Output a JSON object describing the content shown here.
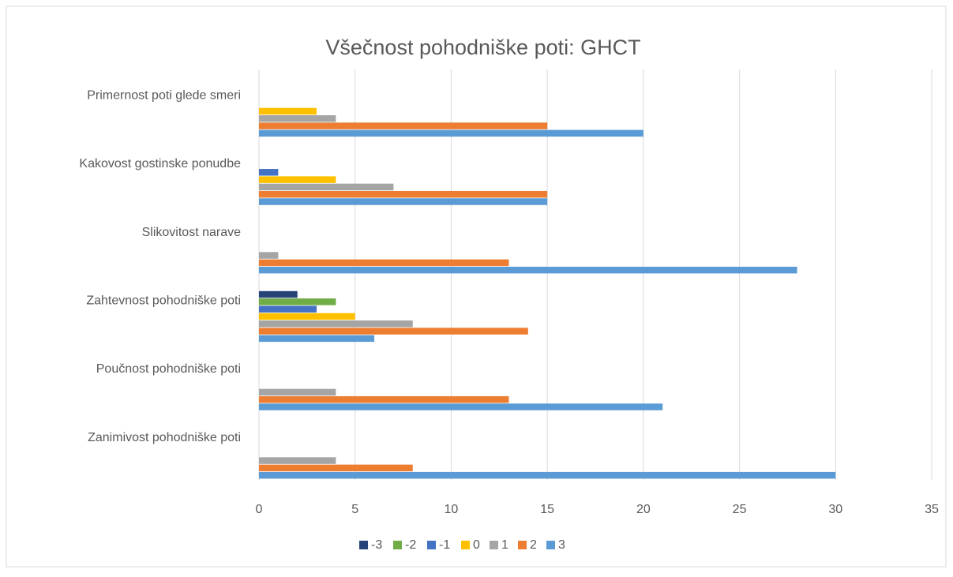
{
  "chart_data": {
    "type": "barh",
    "title": "Všečnost pohodniške poti: GHCT",
    "categories": [
      "Primernost poti glede smeri",
      "Kakovost gostinske ponudbe",
      "Slikovitost narave",
      "Zahtevnost pohodniške poti",
      "Poučnost pohodniške poti",
      "Zanimivost pohodniške poti"
    ],
    "series": [
      {
        "name": "-3",
        "color": "#264478",
        "values": [
          0,
          0,
          0,
          2,
          0,
          0
        ]
      },
      {
        "name": "-2",
        "color": "#70ad47",
        "values": [
          0,
          0,
          0,
          4,
          0,
          0
        ]
      },
      {
        "name": "-1",
        "color": "#4472c4",
        "values": [
          0,
          1,
          0,
          3,
          0,
          0
        ]
      },
      {
        "name": "0",
        "color": "#ffc000",
        "values": [
          3,
          4,
          0,
          5,
          0,
          0
        ]
      },
      {
        "name": "1",
        "color": "#a5a5a5",
        "values": [
          4,
          7,
          1,
          8,
          4,
          4
        ]
      },
      {
        "name": "2",
        "color": "#ed7d31",
        "values": [
          15,
          15,
          13,
          14,
          13,
          8
        ]
      },
      {
        "name": "3",
        "color": "#5b9bd5",
        "values": [
          20,
          15,
          28,
          6,
          21,
          30
        ]
      }
    ],
    "xlim": [
      0,
      35
    ],
    "xticks": [
      0,
      5,
      10,
      15,
      20,
      25,
      30,
      35
    ],
    "grid": true,
    "legend": "bottom"
  }
}
